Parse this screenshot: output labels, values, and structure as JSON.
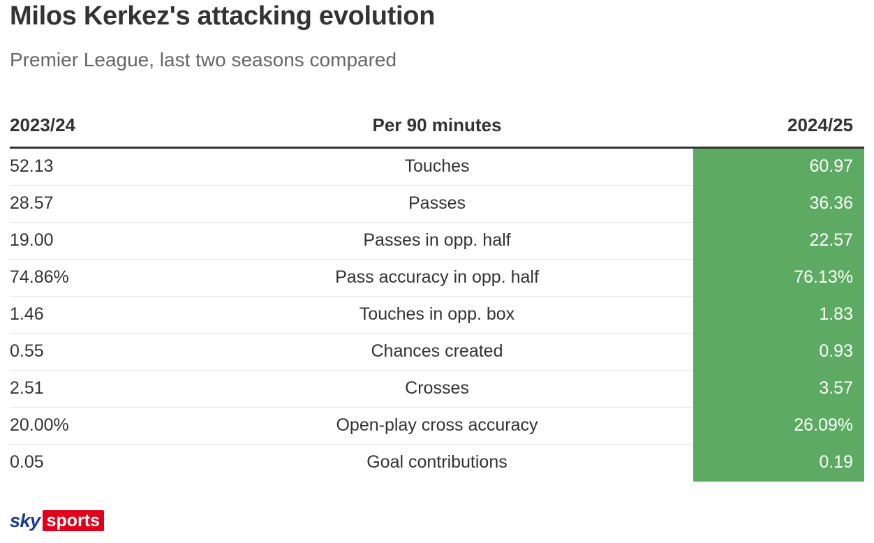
{
  "chart_data": {
    "type": "table",
    "title": "Milos Kerkez's attacking evolution",
    "subtitle": "Premier League, last two seasons compared",
    "columns": [
      "2023/24",
      "Per 90 minutes",
      "2024/25"
    ],
    "highlight_color": "#5dab62",
    "rows": [
      {
        "metric": "Touches",
        "s2324": "52.13",
        "s2425": "60.97"
      },
      {
        "metric": "Passes",
        "s2324": "28.57",
        "s2425": "36.36"
      },
      {
        "metric": "Passes in opp. half",
        "s2324": "19.00",
        "s2425": "22.57"
      },
      {
        "metric": "Pass accuracy in opp. half",
        "s2324": "74.86%",
        "s2425": "76.13%"
      },
      {
        "metric": "Touches in opp. box",
        "s2324": "1.46",
        "s2425": "1.83"
      },
      {
        "metric": "Chances created",
        "s2324": "0.55",
        "s2425": "0.93"
      },
      {
        "metric": "Crosses",
        "s2324": "2.51",
        "s2425": "3.57"
      },
      {
        "metric": "Open-play cross accuracy",
        "s2324": "20.00%",
        "s2425": "26.09%"
      },
      {
        "metric": "Goal contributions",
        "s2324": "0.05",
        "s2425": "0.19"
      }
    ]
  },
  "logo": {
    "sky": "sky",
    "sports": "sports"
  }
}
